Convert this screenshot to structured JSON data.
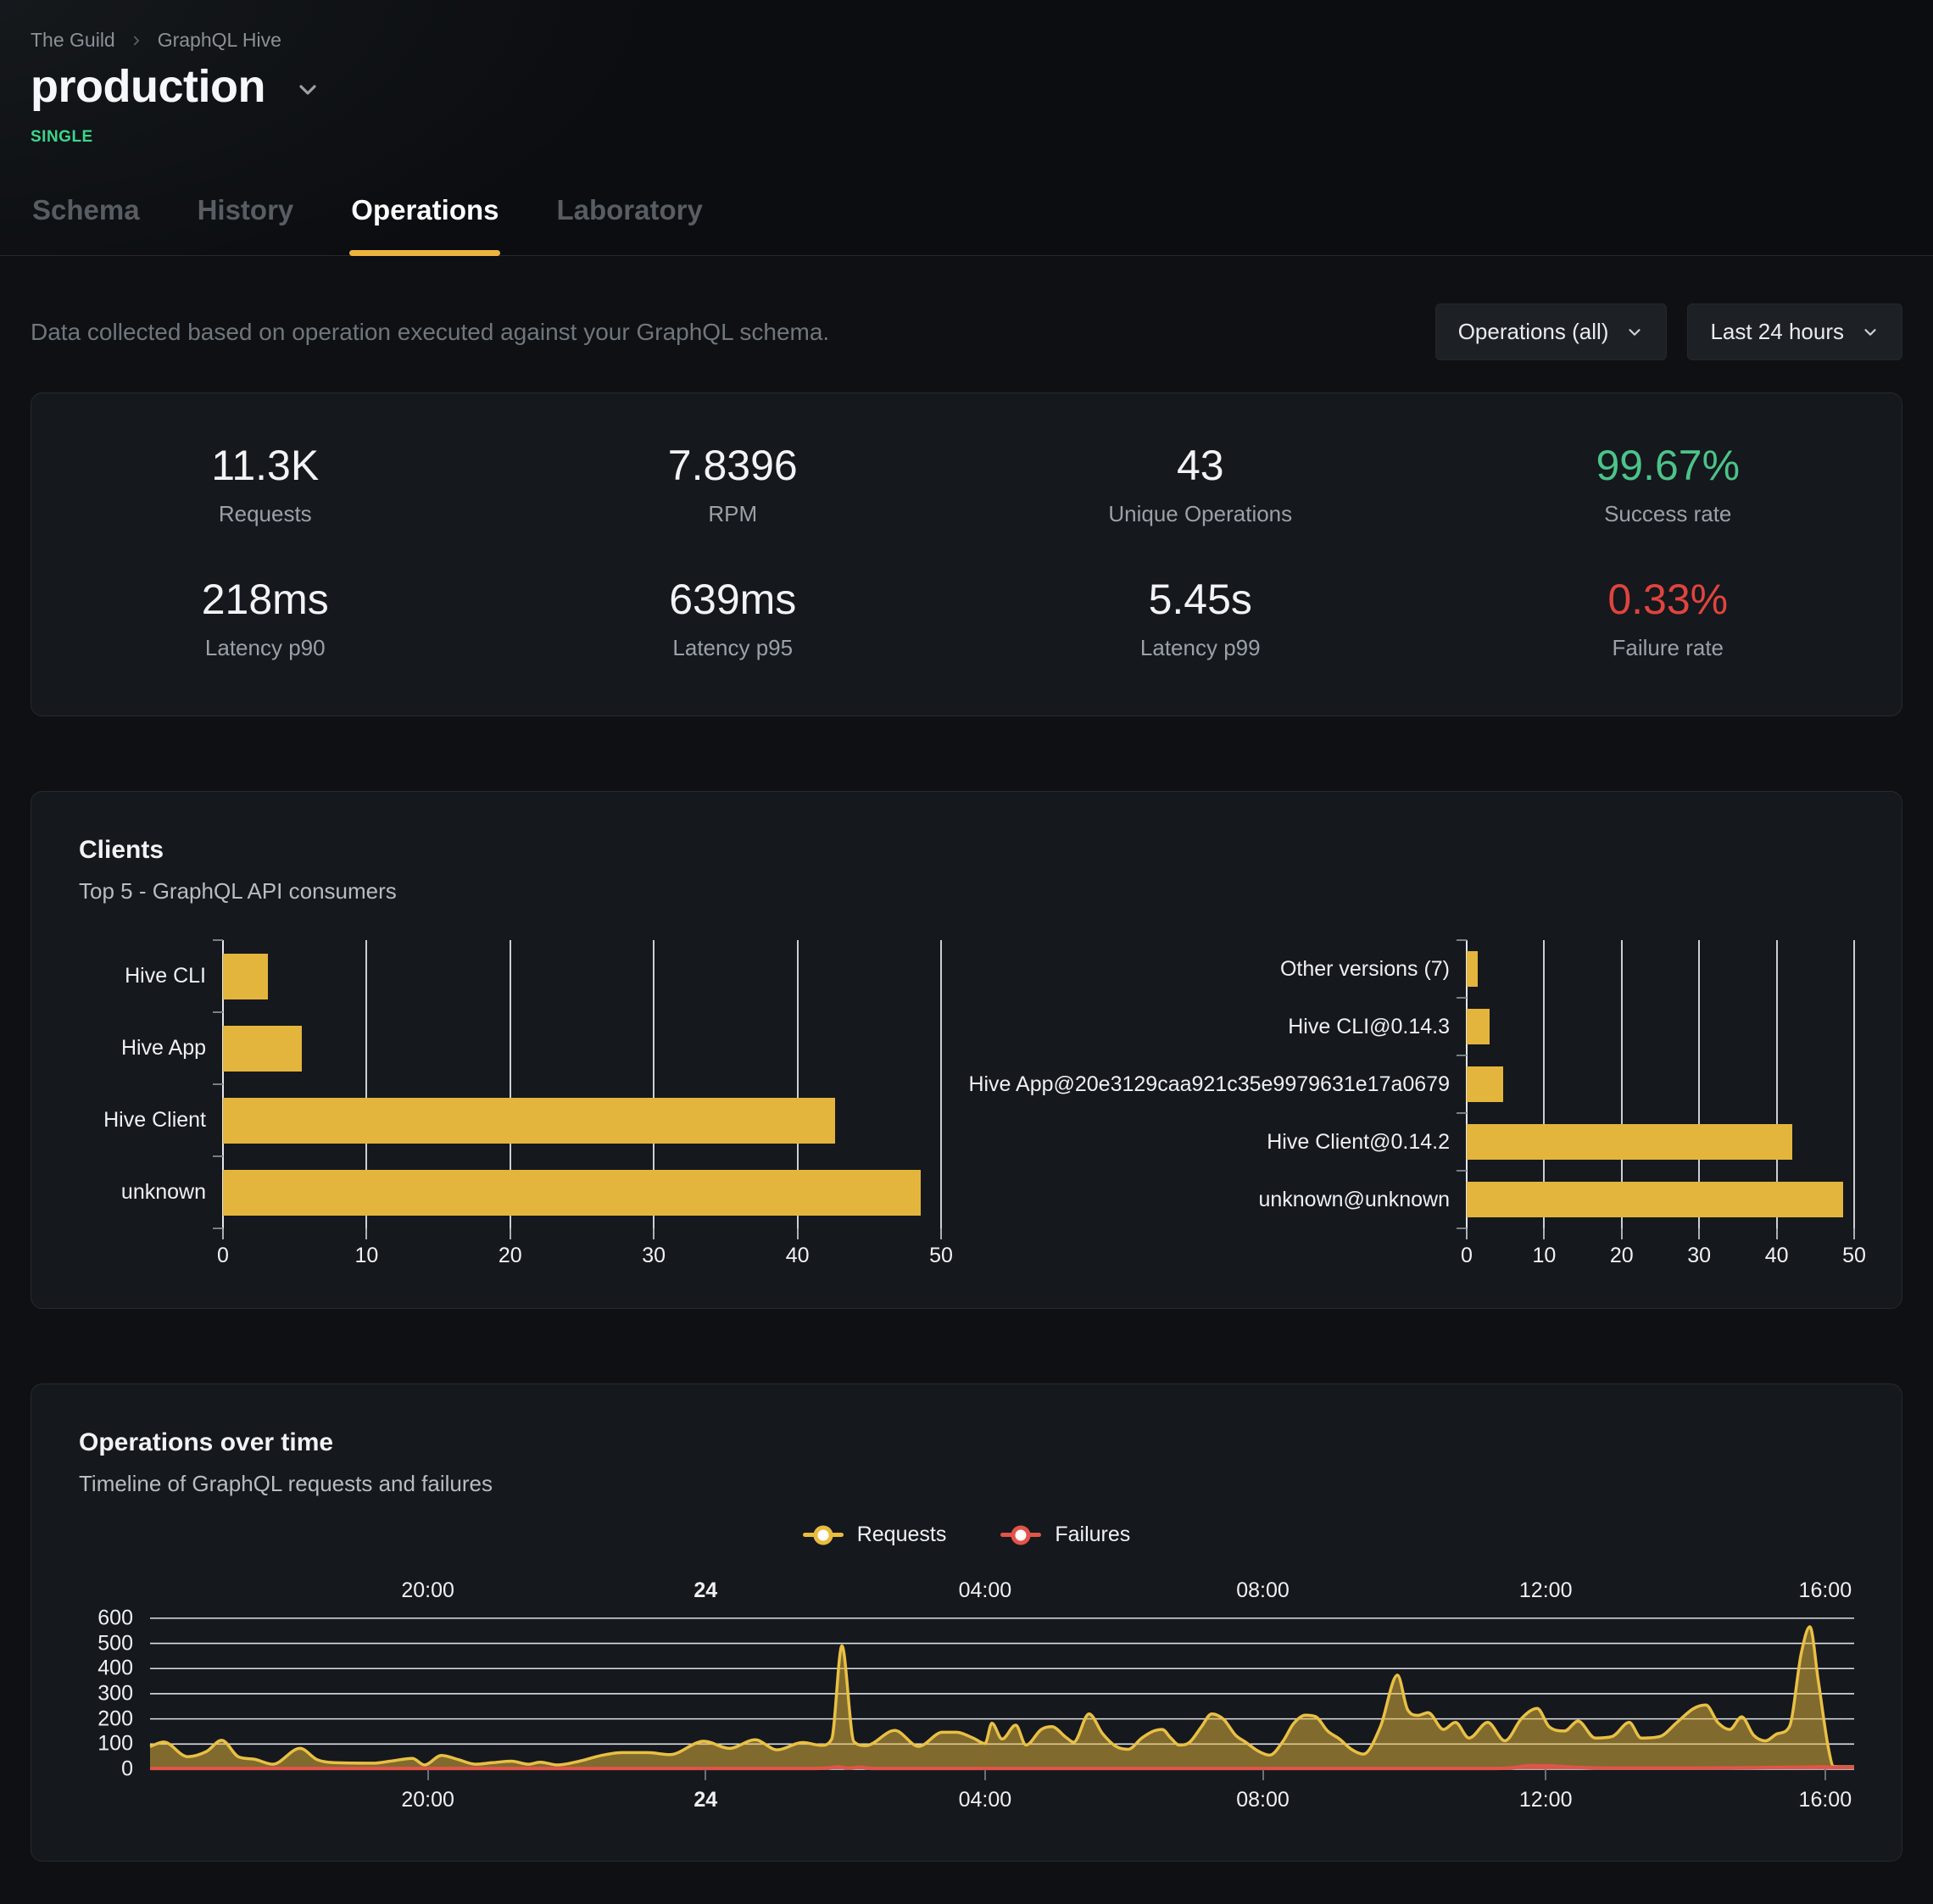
{
  "breadcrumb": {
    "org": "The Guild",
    "project": "GraphQL Hive"
  },
  "target": {
    "name": "production",
    "badge": "SINGLE"
  },
  "tabs": [
    {
      "label": "Schema",
      "active": false
    },
    {
      "label": "History",
      "active": false
    },
    {
      "label": "Operations",
      "active": true
    },
    {
      "label": "Laboratory",
      "active": false
    }
  ],
  "controls": {
    "description": "Data collected based on operation executed against your GraphQL schema.",
    "operations_filter": {
      "value": "Operations (all)"
    },
    "period_filter": {
      "value": "Last 24 hours"
    }
  },
  "stats": [
    {
      "value": "11.3K",
      "label": "Requests",
      "tone": "default"
    },
    {
      "value": "7.8396",
      "label": "RPM",
      "tone": "default"
    },
    {
      "value": "43",
      "label": "Unique Operations",
      "tone": "default"
    },
    {
      "value": "99.67%",
      "label": "Success rate",
      "tone": "success"
    },
    {
      "value": "218ms",
      "label": "Latency p90",
      "tone": "default"
    },
    {
      "value": "639ms",
      "label": "Latency p95",
      "tone": "default"
    },
    {
      "value": "5.45s",
      "label": "Latency p99",
      "tone": "default"
    },
    {
      "value": "0.33%",
      "label": "Failure rate",
      "tone": "danger"
    }
  ],
  "clients_panel": {
    "title": "Clients",
    "subtitle": "Top 5 - GraphQL API consumers"
  },
  "operations_panel": {
    "title": "Operations over time",
    "subtitle": "Timeline of GraphQL requests and failures",
    "legend": [
      {
        "label": "Requests",
        "color": "#e9bc40"
      },
      {
        "label": "Failures",
        "color": "#e2544a"
      }
    ]
  },
  "colors": {
    "accent_yellow": "#e4b53c",
    "success_green": "#4cc38a",
    "danger_red": "#e0443e",
    "badge_green": "#3dd68c"
  },
  "chart_data": [
    {
      "type": "bar",
      "orientation": "horizontal",
      "title": "Top clients by name",
      "categories": [
        "Hive CLI",
        "Hive App",
        "Hive Client",
        "unknown"
      ],
      "values": [
        3.1,
        5.5,
        42.6,
        48.6
      ],
      "xlim": [
        0,
        50
      ],
      "xticks": [
        0,
        10,
        20,
        30,
        40,
        50
      ],
      "bar_color": "#e4b53c",
      "grid": true
    },
    {
      "type": "bar",
      "orientation": "horizontal",
      "title": "Top clients by version",
      "categories": [
        "Other versions (7)",
        "Hive CLI@0.14.3",
        "Hive App@20e3129caa921c35e9979631e17a0679",
        "Hive Client@0.14.2",
        "unknown@unknown"
      ],
      "values": [
        1.4,
        3.0,
        4.7,
        42.0,
        48.6
      ],
      "xlim": [
        0,
        50
      ],
      "xticks": [
        0,
        10,
        20,
        30,
        40,
        50
      ],
      "bar_color": "#e4b53c",
      "grid": true
    },
    {
      "type": "area",
      "title": "Operations over time",
      "ylim": [
        0,
        600
      ],
      "yticks": [
        0,
        100,
        200,
        300,
        400,
        500,
        600
      ],
      "x_axis_labels": [
        {
          "label": "20:00",
          "pos": 163,
          "bold": false
        },
        {
          "label": "24",
          "pos": 326,
          "bold": true
        },
        {
          "label": "04:00",
          "pos": 490,
          "bold": false
        },
        {
          "label": "08:00",
          "pos": 653,
          "bold": false
        },
        {
          "label": "12:00",
          "pos": 819,
          "bold": false
        },
        {
          "label": "16:00",
          "pos": 983,
          "bold": false
        }
      ],
      "series": [
        {
          "name": "Requests",
          "color": "#e9c044",
          "fill": "rgba(228,182,62,0.52)",
          "points": [
            [
              0,
              90
            ],
            [
              8,
              108
            ],
            [
              22,
              50
            ],
            [
              33,
              70
            ],
            [
              42,
              115
            ],
            [
              52,
              49
            ],
            [
              61,
              40
            ],
            [
              72,
              20
            ],
            [
              88,
              83
            ],
            [
              98,
              38
            ],
            [
              108,
              26
            ],
            [
              131,
              24
            ],
            [
              141,
              32
            ],
            [
              154,
              43
            ],
            [
              161,
              17
            ],
            [
              171,
              55
            ],
            [
              181,
              38
            ],
            [
              191,
              20
            ],
            [
              201,
              26
            ],
            [
              212,
              32
            ],
            [
              222,
              20
            ],
            [
              229,
              28
            ],
            [
              239,
              17
            ],
            [
              252,
              32
            ],
            [
              265,
              55
            ],
            [
              277,
              66
            ],
            [
              292,
              66
            ],
            [
              305,
              58
            ],
            [
              325,
              111
            ],
            [
              340,
              83
            ],
            [
              355,
              117
            ],
            [
              368,
              77
            ],
            [
              383,
              106
            ],
            [
              394,
              95
            ],
            [
              400,
              120
            ],
            [
              406,
              490
            ],
            [
              413,
              110
            ],
            [
              420,
              94
            ],
            [
              437,
              154
            ],
            [
              451,
              91
            ],
            [
              465,
              147
            ],
            [
              473,
              147
            ],
            [
              483,
              124
            ],
            [
              490,
              102
            ],
            [
              494,
              183
            ],
            [
              500,
              120
            ],
            [
              508,
              175
            ],
            [
              514,
              96
            ],
            [
              523,
              158
            ],
            [
              529,
              169
            ],
            [
              538,
              124
            ],
            [
              542,
              107
            ],
            [
              551,
              220
            ],
            [
              559,
              141
            ],
            [
              567,
              90
            ],
            [
              574,
              79
            ],
            [
              582,
              124
            ],
            [
              589,
              152
            ],
            [
              594,
              158
            ],
            [
              599,
              124
            ],
            [
              604,
              96
            ],
            [
              610,
              107
            ],
            [
              617,
              169
            ],
            [
              623,
              220
            ],
            [
              630,
              198
            ],
            [
              637,
              135
            ],
            [
              643,
              107
            ],
            [
              650,
              73
            ],
            [
              657,
              56
            ],
            [
              665,
              113
            ],
            [
              671,
              181
            ],
            [
              678,
              215
            ],
            [
              684,
              209
            ],
            [
              691,
              152
            ],
            [
              698,
              120
            ],
            [
              705,
              79
            ],
            [
              712,
              60
            ],
            [
              722,
              169
            ],
            [
              732,
              374
            ],
            [
              738,
              236
            ],
            [
              744,
              214
            ],
            [
              750,
              225
            ],
            [
              759,
              158
            ],
            [
              766,
              186
            ],
            [
              774,
              124
            ],
            [
              785,
              186
            ],
            [
              795,
              113
            ],
            [
              805,
              203
            ],
            [
              814,
              242
            ],
            [
              821,
              169
            ],
            [
              830,
              152
            ],
            [
              838,
              191
            ],
            [
              848,
              124
            ],
            [
              858,
              130
            ],
            [
              868,
              186
            ],
            [
              875,
              124
            ],
            [
              886,
              130
            ],
            [
              896,
              186
            ],
            [
              906,
              242
            ],
            [
              913,
              255
            ],
            [
              920,
              186
            ],
            [
              927,
              158
            ],
            [
              934,
              208
            ],
            [
              941,
              135
            ],
            [
              948,
              113
            ],
            [
              955,
              141
            ],
            [
              962,
              169
            ],
            [
              969,
              462
            ],
            [
              974,
              566
            ],
            [
              979,
              349
            ],
            [
              985,
              79
            ],
            [
              988,
              11
            ],
            [
              1000,
              10
            ]
          ]
        },
        {
          "name": "Failures",
          "color": "#e2544a",
          "fill": "rgba(226,84,74,0.85)",
          "points": [
            [
              0,
              3
            ],
            [
              50,
              3
            ],
            [
              100,
              3
            ],
            [
              150,
              3
            ],
            [
              200,
              3
            ],
            [
              250,
              3
            ],
            [
              300,
              3
            ],
            [
              350,
              3
            ],
            [
              390,
              3
            ],
            [
              398,
              5
            ],
            [
              404,
              9
            ],
            [
              410,
              4
            ],
            [
              416,
              8
            ],
            [
              424,
              3
            ],
            [
              450,
              3
            ],
            [
              500,
              3
            ],
            [
              550,
              3
            ],
            [
              600,
              3
            ],
            [
              650,
              3
            ],
            [
              700,
              3
            ],
            [
              750,
              3
            ],
            [
              790,
              3
            ],
            [
              800,
              6
            ],
            [
              810,
              14
            ],
            [
              822,
              13
            ],
            [
              835,
              8
            ],
            [
              848,
              5
            ],
            [
              860,
              4
            ],
            [
              880,
              4
            ],
            [
              900,
              4
            ],
            [
              920,
              5
            ],
            [
              940,
              6
            ],
            [
              955,
              7
            ],
            [
              969,
              8
            ],
            [
              980,
              9
            ],
            [
              990,
              8
            ],
            [
              1000,
              8
            ]
          ]
        }
      ]
    }
  ]
}
